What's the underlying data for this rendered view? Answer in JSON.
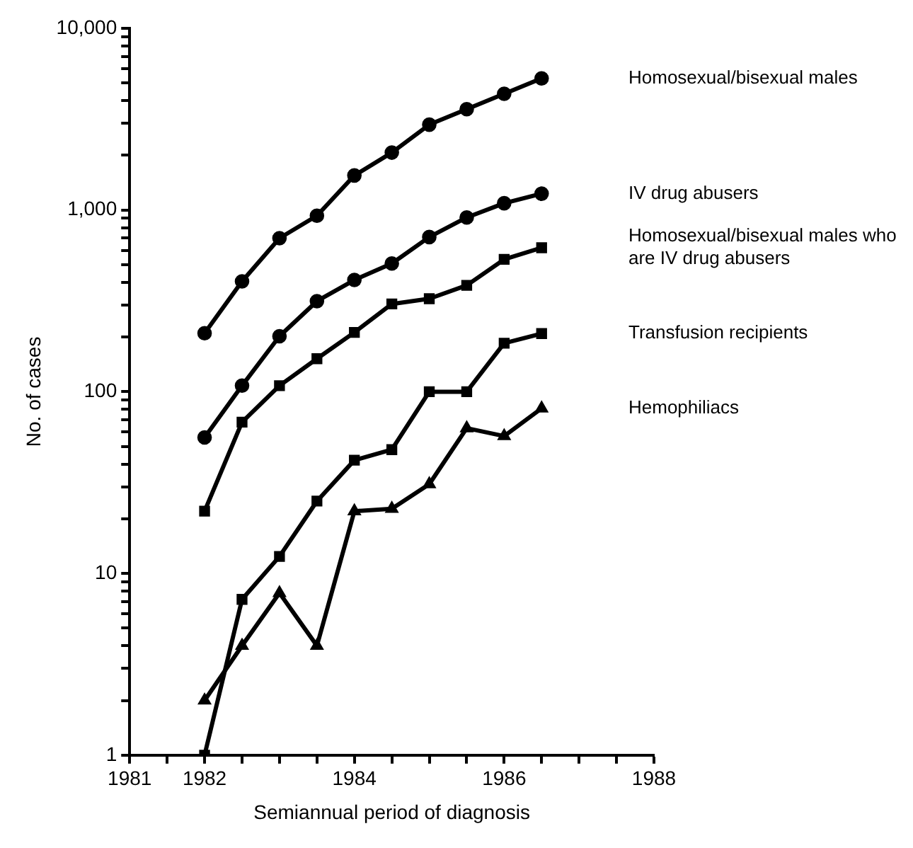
{
  "chart_data": {
    "type": "line",
    "xlabel": "Semiannual period of diagnosis",
    "ylabel": "No. of cases",
    "log": "y",
    "grid": false,
    "legend": false,
    "line_style": "solid",
    "x": [
      1982,
      1982.5,
      1983,
      1983.5,
      1984,
      1984.5,
      1985,
      1985.5,
      1986,
      1986.5
    ],
    "xlim": [
      1981,
      1988
    ],
    "xticks": [
      1981,
      {
        "value": 1981.5,
        "label": null
      },
      1982,
      {
        "value": 1982.5,
        "label": null
      },
      {
        "value": 1983,
        "label": null
      },
      {
        "value": 1983.5,
        "label": null
      },
      1984,
      {
        "value": 1984.5,
        "label": null
      },
      {
        "value": 1985,
        "label": null
      },
      {
        "value": 1985.5,
        "label": null
      },
      1986,
      {
        "value": 1986.5,
        "label": null
      },
      {
        "value": 1987,
        "label": null
      },
      {
        "value": 1987.5,
        "label": null
      },
      1988
    ],
    "ylim": [
      1,
      10000
    ],
    "yticks": [
      1,
      {
        "value": 2,
        "label": null
      },
      {
        "value": 3,
        "label": null
      },
      {
        "value": 4,
        "label": null
      },
      {
        "value": 5,
        "label": null
      },
      {
        "value": 6,
        "label": null
      },
      {
        "value": 7,
        "label": null
      },
      {
        "value": 8,
        "label": null
      },
      {
        "value": 9,
        "label": null
      },
      10,
      {
        "value": 20,
        "label": null
      },
      {
        "value": 30,
        "label": null
      },
      {
        "value": 40,
        "label": null
      },
      {
        "value": 50,
        "label": null
      },
      {
        "value": 60,
        "label": null
      },
      {
        "value": 70,
        "label": null
      },
      {
        "value": 80,
        "label": null
      },
      {
        "value": 90,
        "label": null
      },
      100,
      {
        "value": 200,
        "label": null
      },
      {
        "value": 300,
        "label": null
      },
      {
        "value": 400,
        "label": null
      },
      {
        "value": 500,
        "label": null
      },
      {
        "value": 600,
        "label": null
      },
      {
        "value": 700,
        "label": null
      },
      {
        "value": 800,
        "label": null
      },
      {
        "value": 900,
        "label": null
      },
      {
        "value": 1000,
        "label": "1,000"
      },
      {
        "value": 2000,
        "label": null
      },
      {
        "value": 3000,
        "label": null
      },
      {
        "value": 4000,
        "label": null
      },
      {
        "value": 5000,
        "label": null
      },
      {
        "value": 6000,
        "label": null
      },
      {
        "value": 7000,
        "label": null
      },
      {
        "value": 8000,
        "label": null
      },
      {
        "value": 9000,
        "label": null
      },
      {
        "value": 10000,
        "label": "10,000"
      }
    ],
    "series": [
      {
        "name": "Homosexual/bisexual males",
        "color": "#000000",
        "marker": "circle",
        "values": [
          210,
          405,
          700,
          930,
          1550,
          2070,
          2950,
          3590,
          4360,
          5300
        ]
      },
      {
        "name": "IV drug abusers",
        "color": "#000000",
        "marker": "circle",
        "values": [
          56,
          108,
          202,
          315,
          412,
          508,
          710,
          910,
          1090,
          1230
        ]
      },
      {
        "name": "Homosexual/bisexual males who are IV drug abusers",
        "color": "#000000",
        "marker": "square",
        "values": [
          22,
          68,
          108,
          152,
          212,
          304,
          325,
          385,
          535,
          620
        ]
      },
      {
        "name": "Transfusion recipients",
        "color": "#000000",
        "marker": "square",
        "values": [
          1,
          7.2,
          12.4,
          25,
          42,
          48,
          100,
          100,
          185,
          209
        ]
      },
      {
        "name": "Hemophiliacs",
        "color": "#000000",
        "marker": "triangle",
        "values": [
          2,
          4,
          7.8,
          4,
          22,
          22.7,
          31,
          63,
          57,
          81
        ]
      }
    ]
  }
}
